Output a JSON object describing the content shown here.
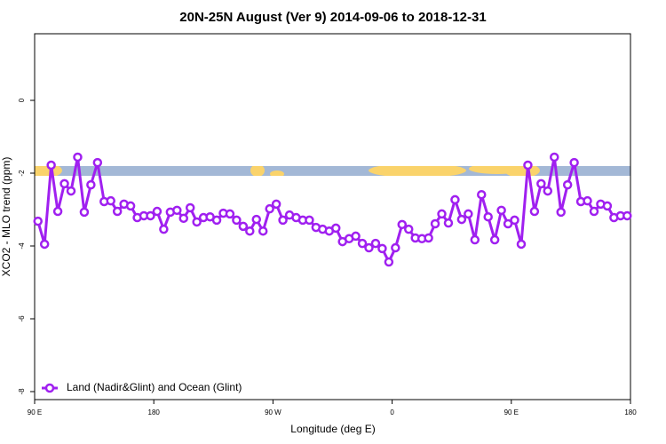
{
  "chart_data": {
    "type": "line",
    "title": "20N-25N August (Ver 9)   2014-09-06 to 2018-12-31",
    "xlabel": "Longitude (deg E)",
    "ylabel": "XCO2 - MLO trend (ppm)",
    "x": [
      92.5,
      97.5,
      102.5,
      107.5,
      112.5,
      117.5,
      122.5,
      127.5,
      132.5,
      137.5,
      142.5,
      147.5,
      152.5,
      157.5,
      162.5,
      167.5,
      172.5,
      177.5,
      182.5,
      187.5,
      192.5,
      197.5,
      202.5,
      207.5,
      212.5,
      217.5,
      222.5,
      227.5,
      232.5,
      237.5,
      242.5,
      247.5,
      252.5,
      257.5,
      262.5,
      267.5,
      272.5,
      277.5,
      282.5,
      287.5,
      292.5,
      297.5,
      302.5,
      307.5,
      312.5,
      317.5,
      322.5,
      327.5,
      332.5,
      337.5,
      342.5,
      347.5,
      352.5,
      357.5,
      362.5,
      367.5,
      372.5,
      377.5,
      382.5,
      387.5,
      392.5,
      397.5,
      402.5,
      407.5,
      412.5,
      417.5,
      422.5,
      427.5,
      432.5,
      437.5,
      442.5,
      447.5,
      452.5,
      457.5,
      462.5,
      467.5,
      472.5,
      477.5,
      482.5,
      487.5,
      492.5,
      497.5,
      502.5,
      507.5,
      512.5,
      517.5,
      522.5,
      527.5,
      532.5,
      537.5
    ],
    "series": [
      {
        "name": "Land (Nadir&Glint) and Ocean (Glint)",
        "color": "#a020f0",
        "values": [
          -3.32,
          -3.95,
          -1.78,
          -3.05,
          -2.29,
          -2.49,
          -1.56,
          -3.07,
          -2.32,
          -1.71,
          -2.78,
          -2.76,
          -3.05,
          -2.85,
          -2.9,
          -3.22,
          -3.17,
          -3.17,
          -3.05,
          -3.54,
          -3.07,
          -3.02,
          -3.24,
          -2.95,
          -3.34,
          -3.22,
          -3.2,
          -3.29,
          -3.1,
          -3.12,
          -3.29,
          -3.46,
          -3.59,
          -3.27,
          -3.59,
          -2.98,
          -2.85,
          -3.29,
          -3.15,
          -3.22,
          -3.29,
          -3.29,
          -3.49,
          -3.54,
          -3.59,
          -3.51,
          -3.88,
          -3.8,
          -3.73,
          -3.93,
          -4.05,
          -3.93,
          -4.07,
          -4.44,
          -4.05,
          -3.41,
          -3.54,
          -3.78,
          -3.8,
          -3.78,
          -3.39,
          -3.12,
          -3.37,
          -2.73,
          -3.27,
          -3.12,
          -3.83,
          -2.59,
          -3.2,
          -3.83,
          -3.02,
          -3.39,
          -3.29,
          -3.95,
          -1.78,
          -3.05,
          -2.29,
          -2.49,
          -1.56,
          -3.07,
          -2.32,
          -1.71,
          -2.78,
          -2.76,
          -3.05,
          -2.85,
          -2.9,
          -3.22,
          -3.17,
          -3.17
        ]
      }
    ],
    "xlim": [
      90,
      540
    ],
    "xticks": [
      {
        "value": 90,
        "label": "90 E"
      },
      {
        "value": 180,
        "label": "180"
      },
      {
        "value": 270,
        "label": "90 W"
      },
      {
        "value": 360,
        "label": "0"
      },
      {
        "value": 450,
        "label": "90 E"
      },
      {
        "value": 540,
        "label": "180"
      }
    ],
    "ylim": [
      -8.22,
      1.83
    ],
    "yticks": [
      0,
      -2,
      -4,
      -6,
      -8
    ],
    "legend": "bottomleft"
  }
}
